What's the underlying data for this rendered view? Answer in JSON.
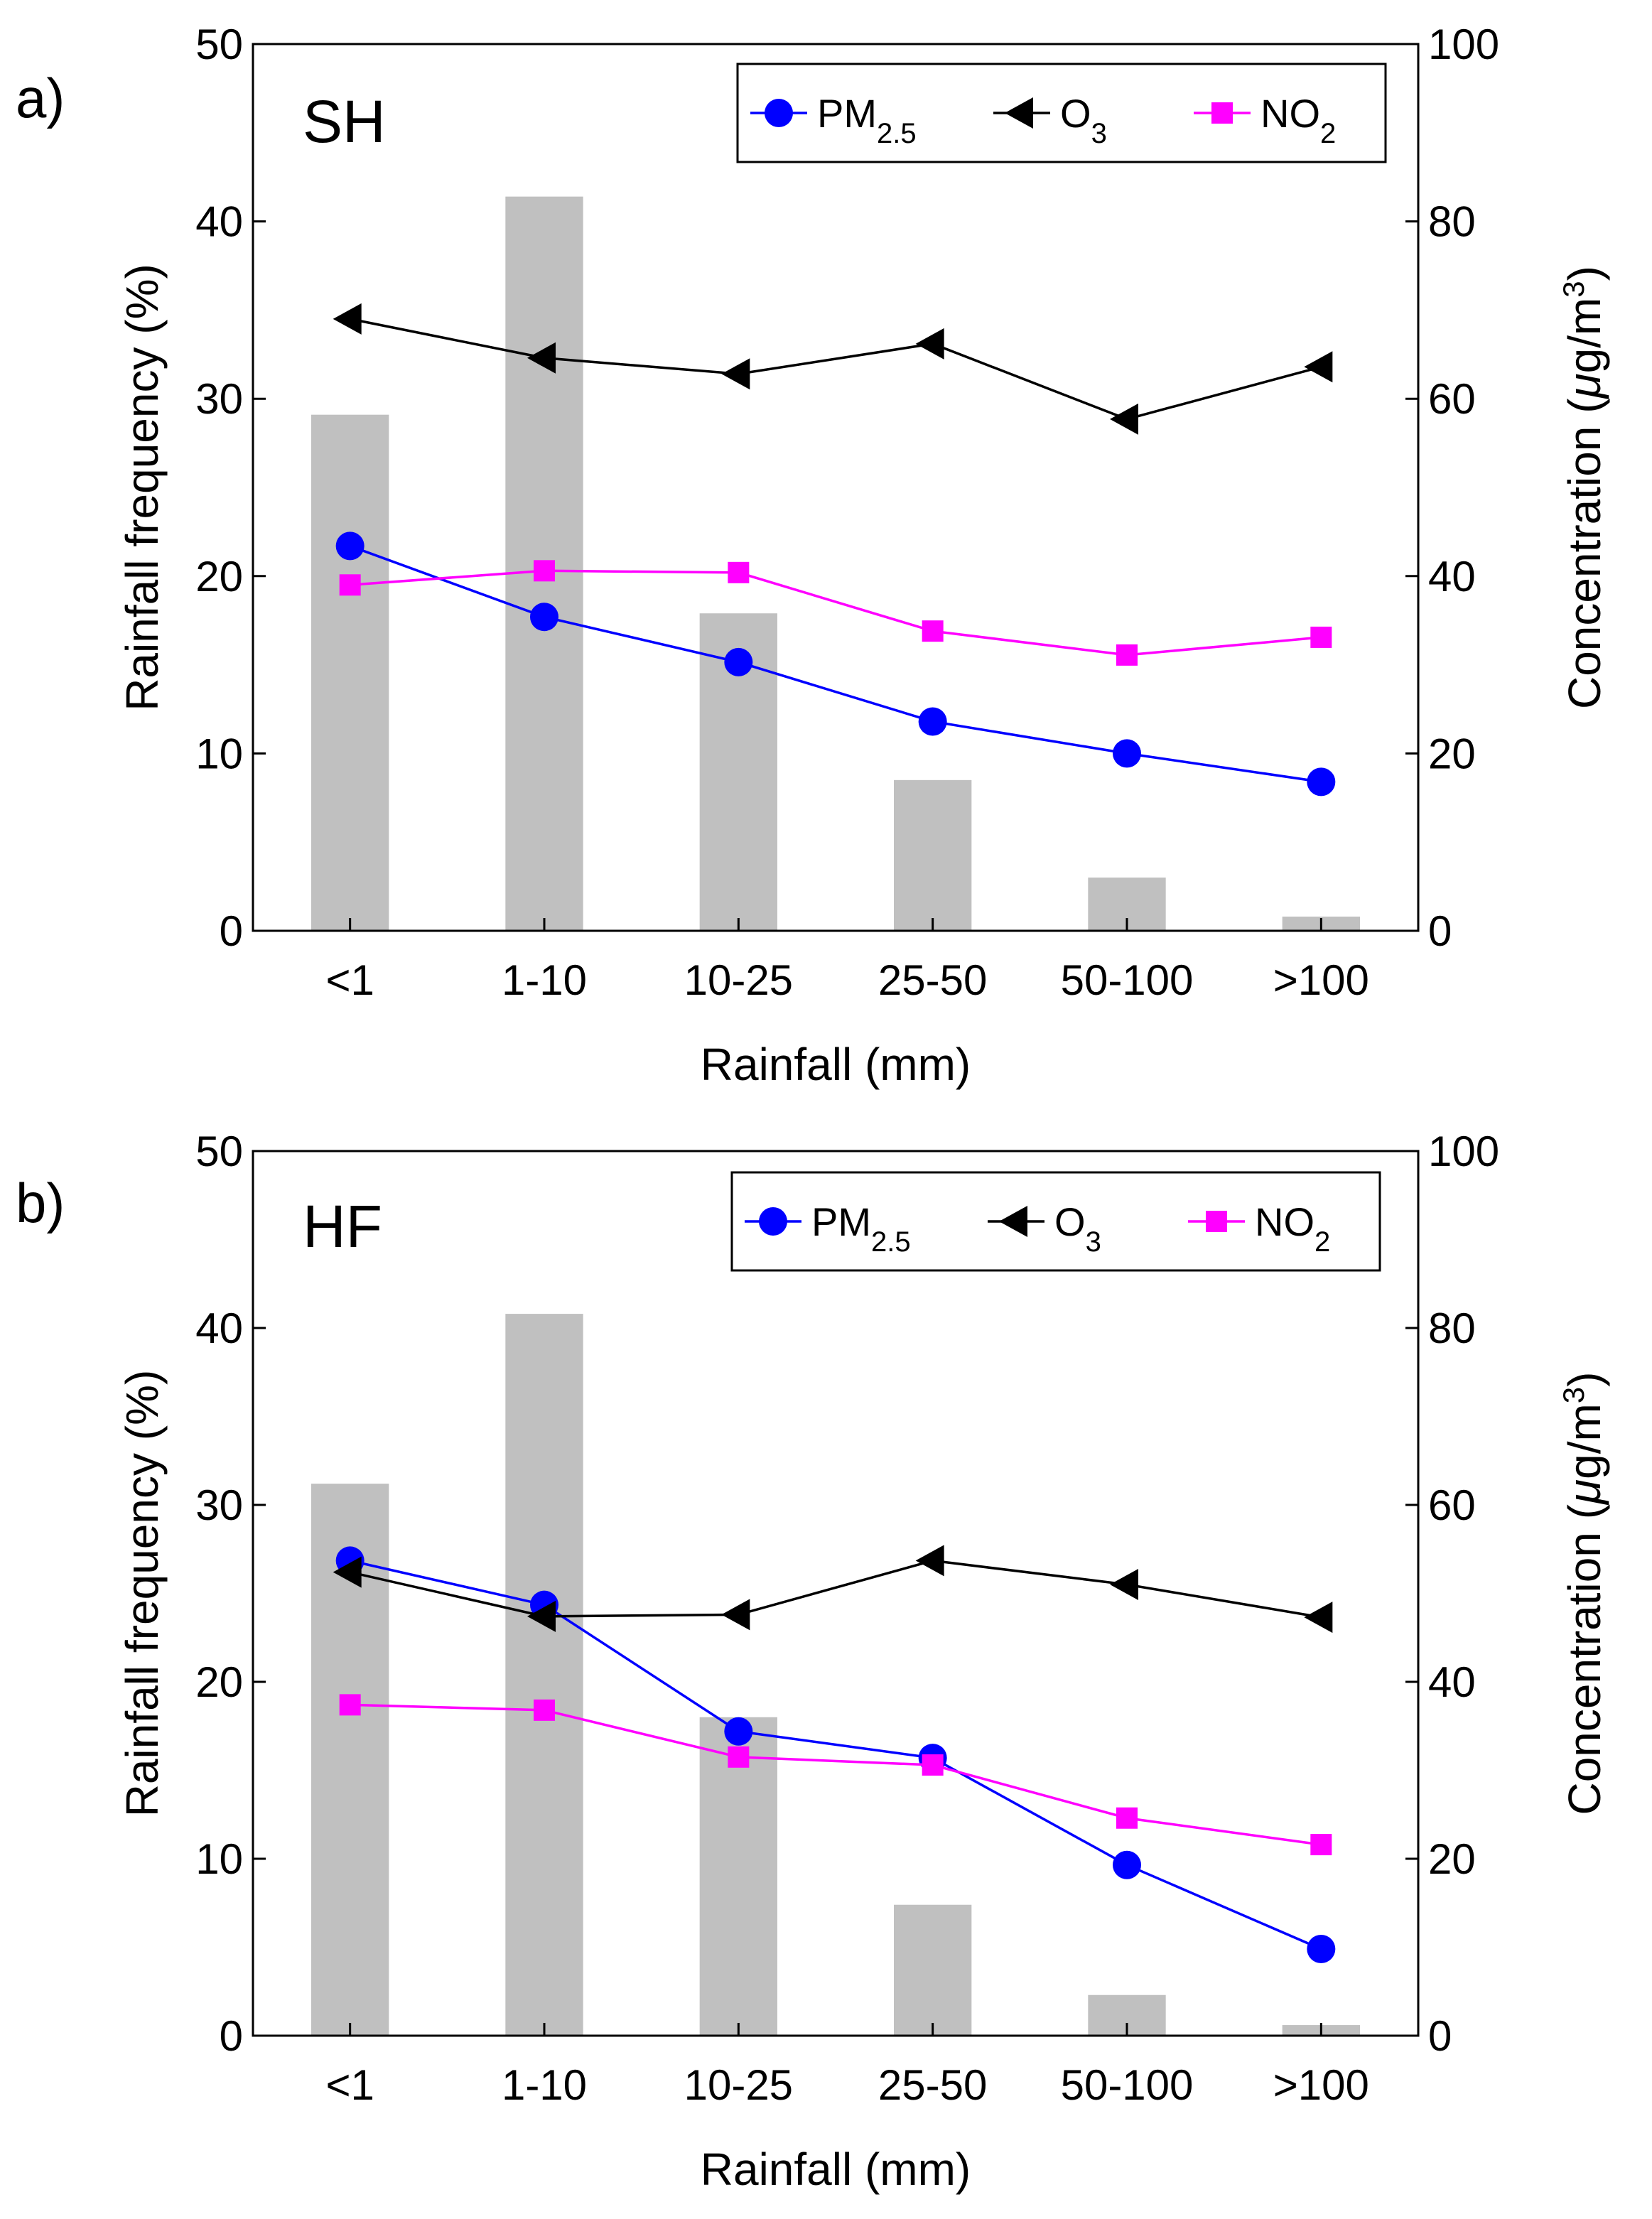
{
  "chart_data": [
    {
      "type": "bar+line",
      "panel_label": "a)",
      "site_label": "SH",
      "categories": [
        "<1",
        "1-10",
        "10-25",
        "25-50",
        "50-100",
        ">100"
      ],
      "xlabel": "Rainfall (mm)",
      "ylabel_left": "Rainfall frequency (%)",
      "ylabel_right_prefix": "Concentration (",
      "ylabel_right_mu": "μ",
      "ylabel_right_unit": "g/m",
      "ylabel_right_sup": "3",
      "ylabel_right_suffix": ")",
      "ylim_left": [
        0,
        50
      ],
      "yticks_left": [
        "0",
        "10",
        "20",
        "30",
        "40",
        "50"
      ],
      "ylim_right": [
        0,
        100
      ],
      "yticks_right": [
        "0",
        "20",
        "40",
        "60",
        "80",
        "100"
      ],
      "bars": {
        "name": "Rainfall frequency",
        "color": "#c0c0c0",
        "values": [
          29.1,
          41.4,
          17.9,
          8.5,
          3.0,
          0.8
        ]
      },
      "legend_position": "top-right",
      "series": [
        {
          "name": "PM",
          "sub": "2.5",
          "color": "#0000ff",
          "marker": "circle",
          "values": [
            43.4,
            35.4,
            30.3,
            23.6,
            20.0,
            16.8
          ]
        },
        {
          "name": "O",
          "sub": "3",
          "color": "#000000",
          "marker": "triangle-left",
          "values": [
            69.0,
            64.6,
            62.8,
            66.2,
            57.7,
            63.6
          ]
        },
        {
          "name": "NO",
          "sub": "2",
          "color": "#ff00ff",
          "marker": "square",
          "values": [
            39.0,
            40.6,
            40.4,
            33.8,
            31.1,
            33.1
          ]
        }
      ]
    },
    {
      "type": "bar+line",
      "panel_label": "b)",
      "site_label": "HF",
      "categories": [
        "<1",
        "1-10",
        "10-25",
        "25-50",
        "50-100",
        ">100"
      ],
      "xlabel": "Rainfall (mm)",
      "ylabel_left": "Rainfall frequency (%)",
      "ylabel_right_prefix": "Concentration (",
      "ylabel_right_mu": "μ",
      "ylabel_right_unit": "g/m",
      "ylabel_right_sup": "3",
      "ylabel_right_suffix": ")",
      "ylim_left": [
        0,
        50
      ],
      "yticks_left": [
        "0",
        "10",
        "20",
        "30",
        "40",
        "50"
      ],
      "ylim_right": [
        0,
        100
      ],
      "yticks_right": [
        "0",
        "20",
        "40",
        "60",
        "80",
        "100"
      ],
      "bars": {
        "name": "Rainfall frequency",
        "color": "#c0c0c0",
        "values": [
          31.2,
          40.8,
          18.0,
          7.4,
          2.3,
          0.6
        ]
      },
      "legend_position": "top-right",
      "series": [
        {
          "name": "PM",
          "sub": "2.5",
          "color": "#0000ff",
          "marker": "circle",
          "values": [
            53.7,
            48.7,
            34.4,
            31.4,
            19.3,
            9.8
          ]
        },
        {
          "name": "O",
          "sub": "3",
          "color": "#000000",
          "marker": "triangle-left",
          "values": [
            52.4,
            47.4,
            47.6,
            53.7,
            51.0,
            47.3
          ]
        },
        {
          "name": "NO",
          "sub": "2",
          "color": "#ff00ff",
          "marker": "square",
          "values": [
            37.4,
            36.8,
            31.5,
            30.6,
            24.6,
            21.6
          ]
        }
      ]
    }
  ]
}
